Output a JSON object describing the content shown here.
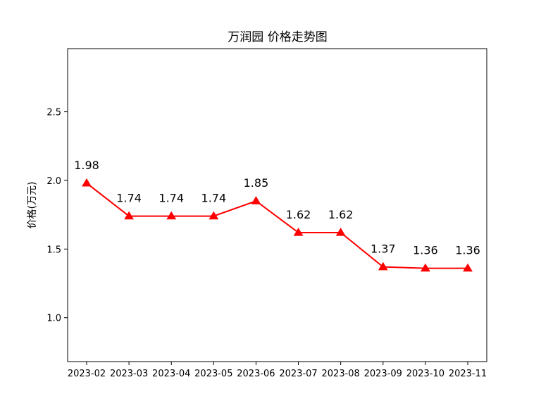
{
  "chart_data": {
    "type": "line",
    "title": "万润园 价格走势图",
    "xlabel": "",
    "ylabel": "价格(万元)",
    "categories": [
      "2023-02",
      "2023-03",
      "2023-04",
      "2023-05",
      "2023-06",
      "2023-07",
      "2023-08",
      "2023-09",
      "2023-10",
      "2023-11"
    ],
    "values": [
      1.98,
      1.74,
      1.74,
      1.74,
      1.85,
      1.62,
      1.62,
      1.37,
      1.36,
      1.36
    ],
    "data_labels": [
      "1.98",
      "1.74",
      "1.74",
      "1.74",
      "1.85",
      "1.62",
      "1.62",
      "1.37",
      "1.36",
      "1.36"
    ],
    "ylim": [
      0.68,
      2.96
    ],
    "yticks": [
      1.0,
      1.5,
      2.0,
      2.5
    ],
    "ytick_labels": [
      "1.0",
      "1.5",
      "2.0",
      "2.5"
    ],
    "grid": false,
    "marker": "triangle-up",
    "line_color": "#ff0000"
  }
}
